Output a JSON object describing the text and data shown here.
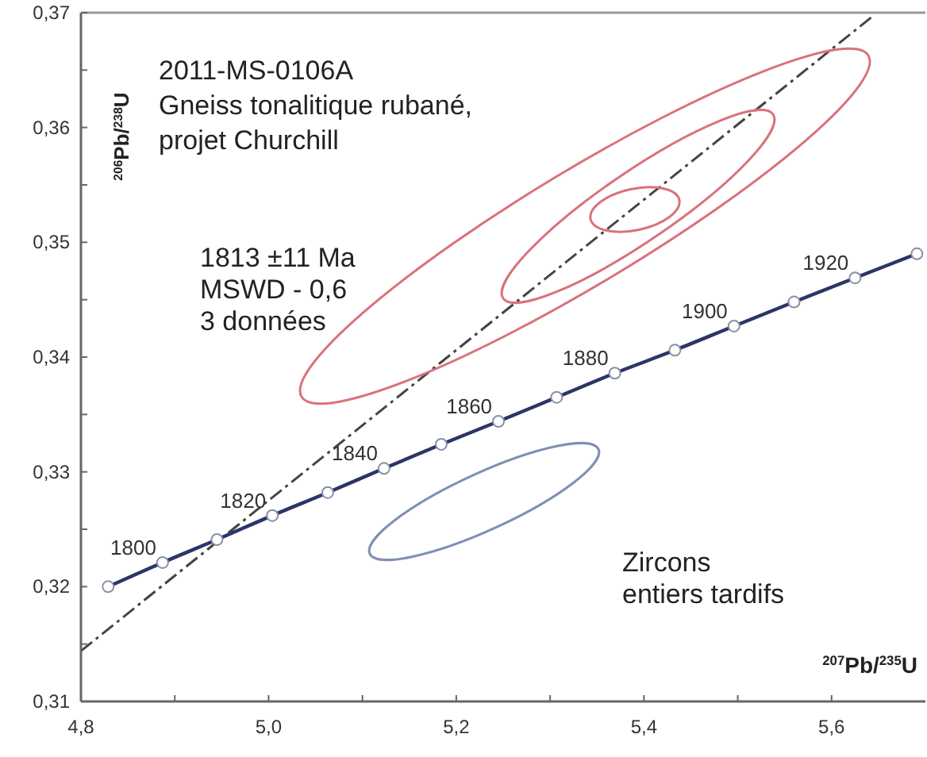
{
  "chart_data": {
    "type": "line",
    "title": "2011-MS-0106A",
    "subtitle": "Gneiss tonalitique rubané,\nprojet Churchill",
    "xlabel": "$^{207}$Pb/$^{235}$U",
    "ylabel": "$^{206}$Pb/$^{238}$U",
    "xlim": [
      4.8,
      5.7
    ],
    "ylim": [
      0.31,
      0.37
    ],
    "xticks": [
      {
        "value": 4.8,
        "label": "4,8"
      },
      {
        "value": 4.9,
        "label": null
      },
      {
        "value": 5.0,
        "label": "5,0"
      },
      {
        "value": 5.1,
        "label": null
      },
      {
        "value": 5.2,
        "label": "5,2"
      },
      {
        "value": 5.3,
        "label": null
      },
      {
        "value": 5.4,
        "label": "5,4"
      },
      {
        "value": 5.5,
        "label": null
      },
      {
        "value": 5.6,
        "label": "5,6"
      }
    ],
    "yticks": [
      {
        "value": 0.31,
        "label": "0,31"
      },
      {
        "value": 0.315,
        "label": null
      },
      {
        "value": 0.32,
        "label": "0,32"
      },
      {
        "value": 0.325,
        "label": null
      },
      {
        "value": 0.33,
        "label": "0,33"
      },
      {
        "value": 0.335,
        "label": null
      },
      {
        "value": 0.34,
        "label": "0,34"
      },
      {
        "value": 0.345,
        "label": null
      },
      {
        "value": 0.35,
        "label": "0,35"
      },
      {
        "value": 0.355,
        "label": null
      },
      {
        "value": 0.36,
        "label": "0,36"
      },
      {
        "value": 0.365,
        "label": null
      },
      {
        "value": 0.37,
        "label": "0,37"
      }
    ],
    "grid": false,
    "series": [
      {
        "color": "#444444",
        "marker": "none",
        "line_style": "dashed",
        "x": [
          4.8,
          5.644
        ],
        "values": [
          0.3144,
          0.3697
        ]
      },
      {
        "color": "#2b3566",
        "marker": "circle",
        "line_style": "solid",
        "x": [
          4.829,
          4.887,
          4.945,
          5.004,
          5.063,
          5.123,
          5.184,
          5.245,
          5.307,
          5.369,
          5.433,
          5.496,
          5.56,
          5.625,
          5.691
        ],
        "values": [
          0.32,
          0.3221,
          0.3241,
          0.3262,
          0.3282,
          0.3303,
          0.3324,
          0.3344,
          0.3365,
          0.3386,
          0.3406,
          0.3427,
          0.3448,
          0.3469,
          0.349
        ]
      }
    ],
    "annotations": [
      {
        "text": "1800",
        "x": 4.887,
        "y": 0.3221
      },
      {
        "text": "1820",
        "x": 5.004,
        "y": 0.3262
      },
      {
        "text": "1840",
        "x": 5.123,
        "y": 0.3303
      },
      {
        "text": "1860",
        "x": 5.245,
        "y": 0.3344
      },
      {
        "text": "1880",
        "x": 5.369,
        "y": 0.3386
      },
      {
        "text": "1900",
        "x": 5.496,
        "y": 0.3427
      },
      {
        "text": "1920",
        "x": 5.625,
        "y": 0.3469
      },
      "1813 ±11 Ma\nMSWD - 0,6\n3 données",
      "Zircons\nentiers tardifs"
    ]
  }
}
